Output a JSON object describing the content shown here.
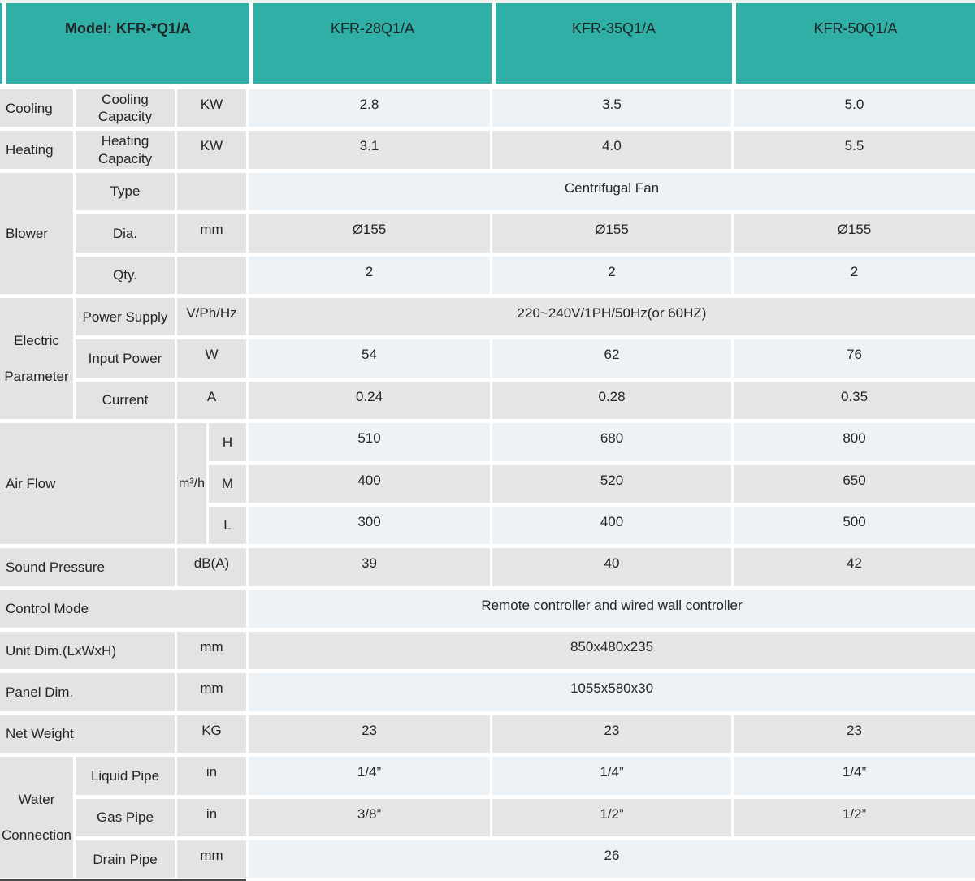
{
  "header": {
    "model_label": "Model: KFR-*Q1/A",
    "columns": [
      "KFR-28Q1/A",
      "KFR-35Q1/A",
      "KFR-50Q1/A"
    ]
  },
  "rows": [
    {
      "group": "Cooling",
      "label": "Cooling Capacity",
      "unit": "KW",
      "values": [
        "2.8",
        "3.5",
        "5.0"
      ]
    },
    {
      "group": "Heating",
      "label": "Heating Capacity",
      "unit": "KW",
      "values": [
        "3.1",
        "4.0",
        "5.5"
      ]
    },
    {
      "group": "Blower",
      "label": "Type",
      "unit": "",
      "span": "Centrifugal Fan"
    },
    {
      "label": "Dia.",
      "unit": "mm",
      "values": [
        "Ø155",
        "Ø155",
        "Ø155"
      ]
    },
    {
      "label": "Qty.",
      "unit": "",
      "values": [
        "2",
        "2",
        "2"
      ]
    },
    {
      "group": "Electric Parameter",
      "label": "Power Supply",
      "unit": "V/Ph/Hz",
      "span": "220~240V/1PH/50Hz(or 60HZ)"
    },
    {
      "label": "Input Power",
      "unit": "W",
      "values": [
        "54",
        "62",
        "76"
      ]
    },
    {
      "label": "Current",
      "unit": "A",
      "values": [
        "0.24",
        "0.28",
        "0.35"
      ]
    },
    {
      "group": "Air Flow",
      "unit": "m³/h",
      "label": "H",
      "values": [
        "510",
        "680",
        "800"
      ]
    },
    {
      "label": "M",
      "values": [
        "400",
        "520",
        "650"
      ]
    },
    {
      "label": "L",
      "values": [
        "300",
        "400",
        "500"
      ]
    },
    {
      "label": "Sound Pressure",
      "unit": "dB(A)",
      "values": [
        "39",
        "40",
        "42"
      ]
    },
    {
      "label": "Control Mode",
      "span": "Remote controller and wired wall controller"
    },
    {
      "label": "Unit Dim.(LxWxH)",
      "unit": "mm",
      "span": "850x480x235"
    },
    {
      "label": "Panel Dim.",
      "unit": "mm",
      "span": "1055x580x30"
    },
    {
      "label": "Net Weight",
      "unit": "KG",
      "values": [
        "23",
        "23",
        "23"
      ]
    },
    {
      "group": "Water Connection",
      "label": "Liquid Pipe",
      "unit": "in",
      "values": [
        "1/4”",
        "1/4”",
        "1/4”"
      ]
    },
    {
      "label": "Gas Pipe",
      "unit": "in",
      "values": [
        "3/8”",
        "1/2”",
        "1/2”"
      ]
    },
    {
      "label": "Drain Pipe",
      "unit": "mm",
      "span": "26"
    }
  ],
  "colors": {
    "header_teal": "#30afa7",
    "label_gray": "#e3e3e5",
    "row_light": "#edf2f6",
    "row_gray": "#e5e6e8",
    "bottom_bar": "#454647"
  }
}
